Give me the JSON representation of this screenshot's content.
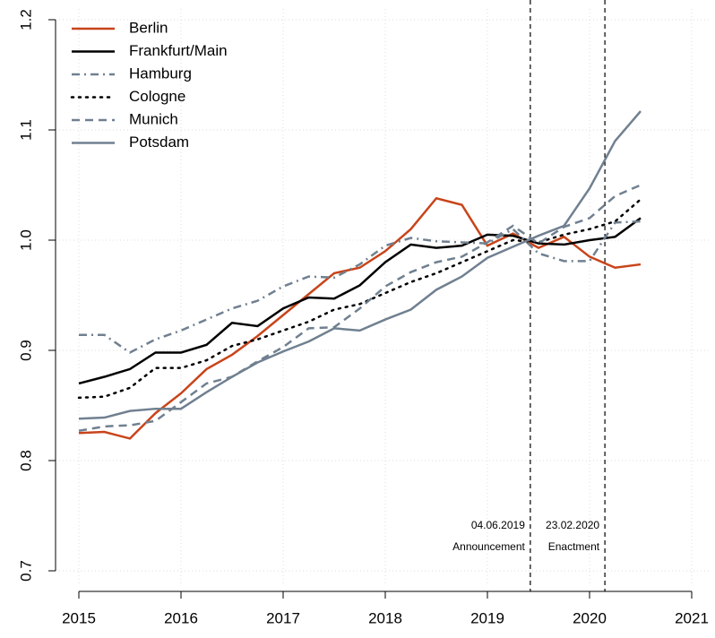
{
  "chart_data": {
    "type": "line",
    "x": [
      2015,
      2015.25,
      2015.5,
      2015.75,
      2016,
      2016.25,
      2016.5,
      2016.75,
      2017,
      2017.25,
      2017.5,
      2017.75,
      2018,
      2018.25,
      2018.5,
      2018.75,
      2019,
      2019.25,
      2019.5,
      2019.75,
      2020,
      2020.25,
      2020.5
    ],
    "series": [
      {
        "name": "Berlin",
        "color": "#c8441a",
        "linestyle": "solid",
        "values": [
          0.825,
          0.826,
          0.82,
          0.843,
          0.861,
          0.883,
          0.896,
          0.913,
          0.932,
          0.951,
          0.97,
          0.975,
          0.99,
          1.01,
          1.038,
          1.032,
          0.995,
          1.006,
          0.993,
          1.003,
          0.985,
          0.975,
          0.978
        ]
      },
      {
        "name": "Frankfurt/Main",
        "color": "#000000",
        "linestyle": "solid",
        "values": [
          0.87,
          0.876,
          0.883,
          0.898,
          0.898,
          0.905,
          0.925,
          0.922,
          0.938,
          0.948,
          0.947,
          0.959,
          0.98,
          0.996,
          0.993,
          0.995,
          1.005,
          1.004,
          0.997,
          0.996,
          1.0,
          1.003,
          1.02
        ]
      },
      {
        "name": "Hamburg",
        "color": "#708090",
        "linestyle": "dashdot",
        "values": [
          0.914,
          0.914,
          0.898,
          0.91,
          0.918,
          0.928,
          0.938,
          0.945,
          0.958,
          0.967,
          0.966,
          0.978,
          0.995,
          1.002,
          0.999,
          0.998,
          0.997,
          1.01,
          0.988,
          0.981,
          0.981,
          1.016,
          1.017
        ]
      },
      {
        "name": "Cologne",
        "color": "#000000",
        "linestyle": "dotted",
        "values": [
          0.857,
          0.858,
          0.866,
          0.884,
          0.884,
          0.891,
          0.904,
          0.91,
          0.918,
          0.926,
          0.937,
          0.942,
          0.952,
          0.962,
          0.97,
          0.98,
          0.99,
          1.0,
          0.998,
          1.005,
          1.01,
          1.017,
          1.037
        ]
      },
      {
        "name": "Munich",
        "color": "#708090",
        "linestyle": "dashed",
        "values": [
          0.827,
          0.831,
          0.832,
          0.836,
          0.853,
          0.87,
          0.876,
          0.89,
          0.903,
          0.92,
          0.921,
          0.938,
          0.958,
          0.971,
          0.98,
          0.985,
          0.998,
          1.013,
          0.997,
          1.012,
          1.02,
          1.04,
          1.05
        ]
      },
      {
        "name": "Potsdam",
        "color": "#708090",
        "linestyle": "solid",
        "values": [
          0.838,
          0.839,
          0.845,
          0.847,
          0.847,
          0.862,
          0.876,
          0.889,
          0.899,
          0.908,
          0.92,
          0.918,
          0.928,
          0.937,
          0.955,
          0.967,
          0.984,
          0.994,
          1.004,
          1.013,
          1.047,
          1.09,
          1.117
        ]
      }
    ],
    "xlim": [
      2015,
      2021
    ],
    "xticks": [
      2015,
      2016,
      2017,
      2018,
      2019,
      2020,
      2021
    ],
    "ylim": [
      0.7,
      1.2
    ],
    "yticks": [
      0.7,
      0.8,
      0.9,
      {
        "value": 1,
        "label": "1.0"
      },
      1.1,
      1.2
    ],
    "grid": true,
    "legend": "top-left",
    "annotations": [
      {
        "x": 2019.42,
        "labels": [
          "04.06.2019",
          "Announcement"
        ]
      },
      {
        "x": 2020.15,
        "labels": [
          "23.02.2020",
          "Enactment"
        ]
      }
    ]
  }
}
